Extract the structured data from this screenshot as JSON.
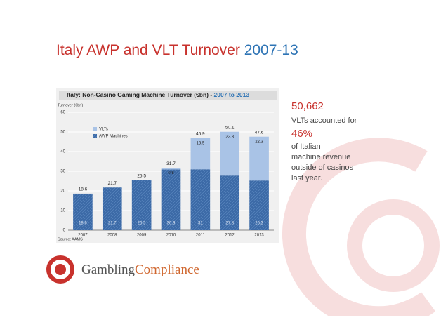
{
  "title": "Italy AWP and VLT Turnover",
  "title_highlight": "2007-13",
  "chart_data": {
    "type": "stacked-bar",
    "title": "Italy: Non-Casino Gaming Machine Turnover (€bn) -",
    "title_highlight": "2007 to 2013",
    "y_label": "Turnover (€bn)",
    "categories": [
      "2007",
      "2008",
      "2009",
      "2010",
      "2011",
      "2012",
      "2013"
    ],
    "series": [
      {
        "name": "AWP Machines",
        "color": "#3b69a6",
        "values": [
          18.6,
          21.7,
          25.5,
          30.9,
          31.0,
          27.8,
          25.3
        ]
      },
      {
        "name": "VLTs",
        "color": "#a9c3e6",
        "values": [
          null,
          null,
          null,
          0.8,
          15.9,
          22.3,
          22.3
        ]
      }
    ],
    "totals": [
      18.6,
      21.7,
      25.5,
      31.7,
      46.9,
      50.1,
      47.6
    ],
    "ylim": [
      0,
      60
    ],
    "yticks": [
      0,
      10,
      20,
      30,
      40,
      50,
      60
    ],
    "grid": true,
    "source": "Source: AAMS"
  },
  "sidebar": {
    "count": "50,662",
    "count_text": "VLTs accounted for",
    "share": "46%",
    "lines": [
      "of Italian",
      "machine revenue",
      "outside of casinos",
      "last year."
    ]
  },
  "logo": {
    "part1": "Gambling",
    "part2": "Compliance"
  }
}
